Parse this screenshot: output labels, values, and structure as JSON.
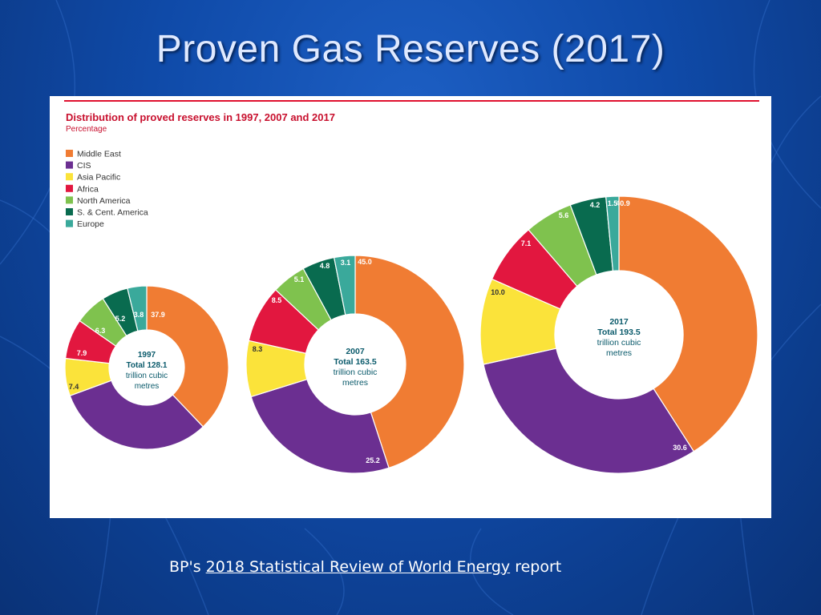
{
  "slide": {
    "title": "Proven Gas Reserves (2017)",
    "caption_prefix": "BP's ",
    "caption_link": "2018 Statistical Review of World Energy",
    "caption_suffix": " report"
  },
  "chart_data": {
    "type": "pie",
    "title": "Distribution of proved reserves in 1997, 2007 and 2017",
    "subtitle": "Percentage",
    "legend_position": "top-left",
    "series_colors": {
      "Middle East": "#f07c33",
      "CIS": "#6b2f91",
      "Asia Pacific": "#fbe33a",
      "Africa": "#e2173f",
      "North America": "#7fc24e",
      "S. & Cent. America": "#096b4f",
      "Europe": "#3aa99b"
    },
    "categories": [
      "Middle East",
      "CIS",
      "Asia Pacific",
      "Africa",
      "North America",
      "S. & Cent. America",
      "Europe"
    ],
    "charts": [
      {
        "year": "1997",
        "total_label": "Total 128.1",
        "unit_line1": "trillion cubic",
        "unit_line2": "metres",
        "values": [
          37.9,
          31.5,
          7.4,
          7.9,
          6.3,
          5.2,
          3.8
        ],
        "labels": [
          "37.9",
          "31.5",
          "7.4",
          "7.9",
          "6.3",
          "5.2",
          "3.8"
        ]
      },
      {
        "year": "2007",
        "total_label": "Total 163.5",
        "unit_line1": "trillion cubic",
        "unit_line2": "metres",
        "values": [
          45.0,
          25.2,
          8.3,
          8.5,
          5.1,
          4.8,
          3.1
        ],
        "labels": [
          "45.0",
          "25.2",
          "8.3",
          "8.5",
          "5.1",
          "4.8",
          "3.1"
        ]
      },
      {
        "year": "2017",
        "total_label": "Total 193.5",
        "unit_line1": "trillion cubic",
        "unit_line2": "metres",
        "values": [
          40.9,
          30.6,
          10.0,
          7.1,
          5.6,
          4.2,
          1.5
        ],
        "labels": [
          "40.9",
          "30.6",
          "10.0",
          "7.1",
          "5.6",
          "4.2",
          "1.5"
        ]
      }
    ]
  }
}
